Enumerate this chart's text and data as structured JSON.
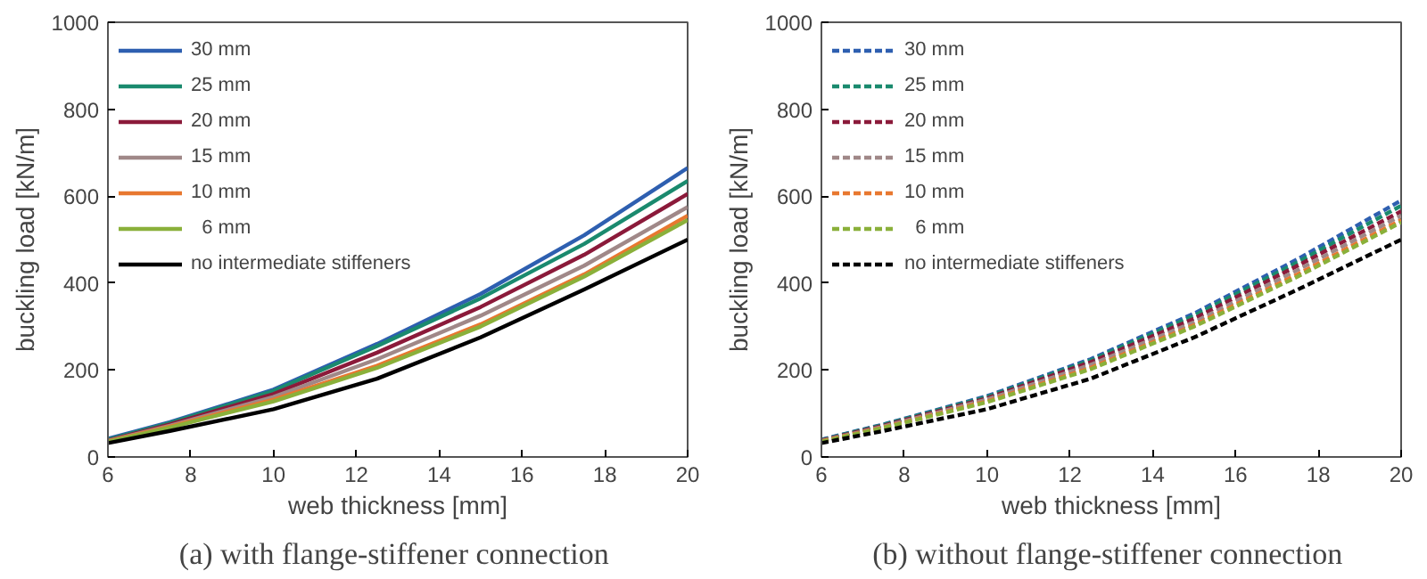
{
  "chart_data": [
    {
      "type": "line",
      "title": "(a)  with flange-stiffener connection",
      "xlabel": "web thickness [mm]",
      "ylabel": "buckling load [kN/m]",
      "x": [
        6,
        7.5,
        10,
        12.5,
        15,
        17.5,
        20
      ],
      "xlim": [
        6,
        20
      ],
      "xticks": [
        6,
        8,
        10,
        12,
        14,
        16,
        18,
        20
      ],
      "ylim": [
        0,
        1000
      ],
      "yticks": [
        0,
        200,
        400,
        600,
        800,
        1000
      ],
      "grid": false,
      "legend": "top left",
      "line_style": "solid",
      "series": [
        {
          "name": "30 mm",
          "color": "#2e5fb0",
          "values": [
            42,
            80,
            155,
            260,
            375,
            510,
            665
          ]
        },
        {
          "name": "25 mm",
          "color": "#1a8a6e",
          "values": [
            40,
            78,
            152,
            255,
            365,
            490,
            635
          ]
        },
        {
          "name": "20 mm",
          "color": "#8b1a3a",
          "values": [
            38,
            75,
            145,
            240,
            345,
            465,
            605
          ]
        },
        {
          "name": "15 mm",
          "color": "#a08888",
          "values": [
            37,
            72,
            138,
            225,
            325,
            440,
            575
          ]
        },
        {
          "name": "10 mm",
          "color": "#e87830",
          "values": [
            36,
            70,
            132,
            210,
            305,
            420,
            555
          ]
        },
        {
          "name": "  6 mm",
          "color": "#8ab03a",
          "values": [
            35,
            68,
            128,
            205,
            300,
            415,
            545
          ]
        },
        {
          "name": "no intermediate stiffeners",
          "color": "#000000",
          "values": [
            32,
            60,
            110,
            180,
            275,
            385,
            500
          ]
        }
      ]
    },
    {
      "type": "line",
      "title": "(b)  without flange-stiffener connection",
      "xlabel": "web thickness [mm]",
      "ylabel": "buckling load [kN/m]",
      "x": [
        6,
        7.5,
        10,
        12.5,
        15,
        17.5,
        20
      ],
      "xlim": [
        6,
        20
      ],
      "xticks": [
        6,
        8,
        10,
        12,
        14,
        16,
        18,
        20
      ],
      "ylim": [
        0,
        1000
      ],
      "yticks": [
        0,
        200,
        400,
        600,
        800,
        1000
      ],
      "grid": false,
      "legend": "top left",
      "line_style": "dashed",
      "series": [
        {
          "name": "30 mm",
          "color": "#2e5fb0",
          "values": [
            40,
            75,
            140,
            225,
            330,
            455,
            590
          ]
        },
        {
          "name": "25 mm",
          "color": "#1a8a6e",
          "values": [
            39,
            74,
            138,
            222,
            325,
            448,
            578
          ]
        },
        {
          "name": "20 mm",
          "color": "#8b1a3a",
          "values": [
            38,
            72,
            135,
            218,
            318,
            440,
            565
          ]
        },
        {
          "name": "15 mm",
          "color": "#a08888",
          "values": [
            37,
            70,
            132,
            212,
            310,
            430,
            555
          ]
        },
        {
          "name": "10 mm",
          "color": "#e87830",
          "values": [
            36,
            68,
            128,
            205,
            303,
            420,
            545
          ]
        },
        {
          "name": "  6 mm",
          "color": "#8ab03a",
          "values": [
            35,
            67,
            126,
            202,
            300,
            415,
            540
          ]
        },
        {
          "name": "no intermediate stiffeners",
          "color": "#000000",
          "values": [
            32,
            60,
            110,
            180,
            275,
            385,
            500
          ]
        }
      ]
    }
  ]
}
